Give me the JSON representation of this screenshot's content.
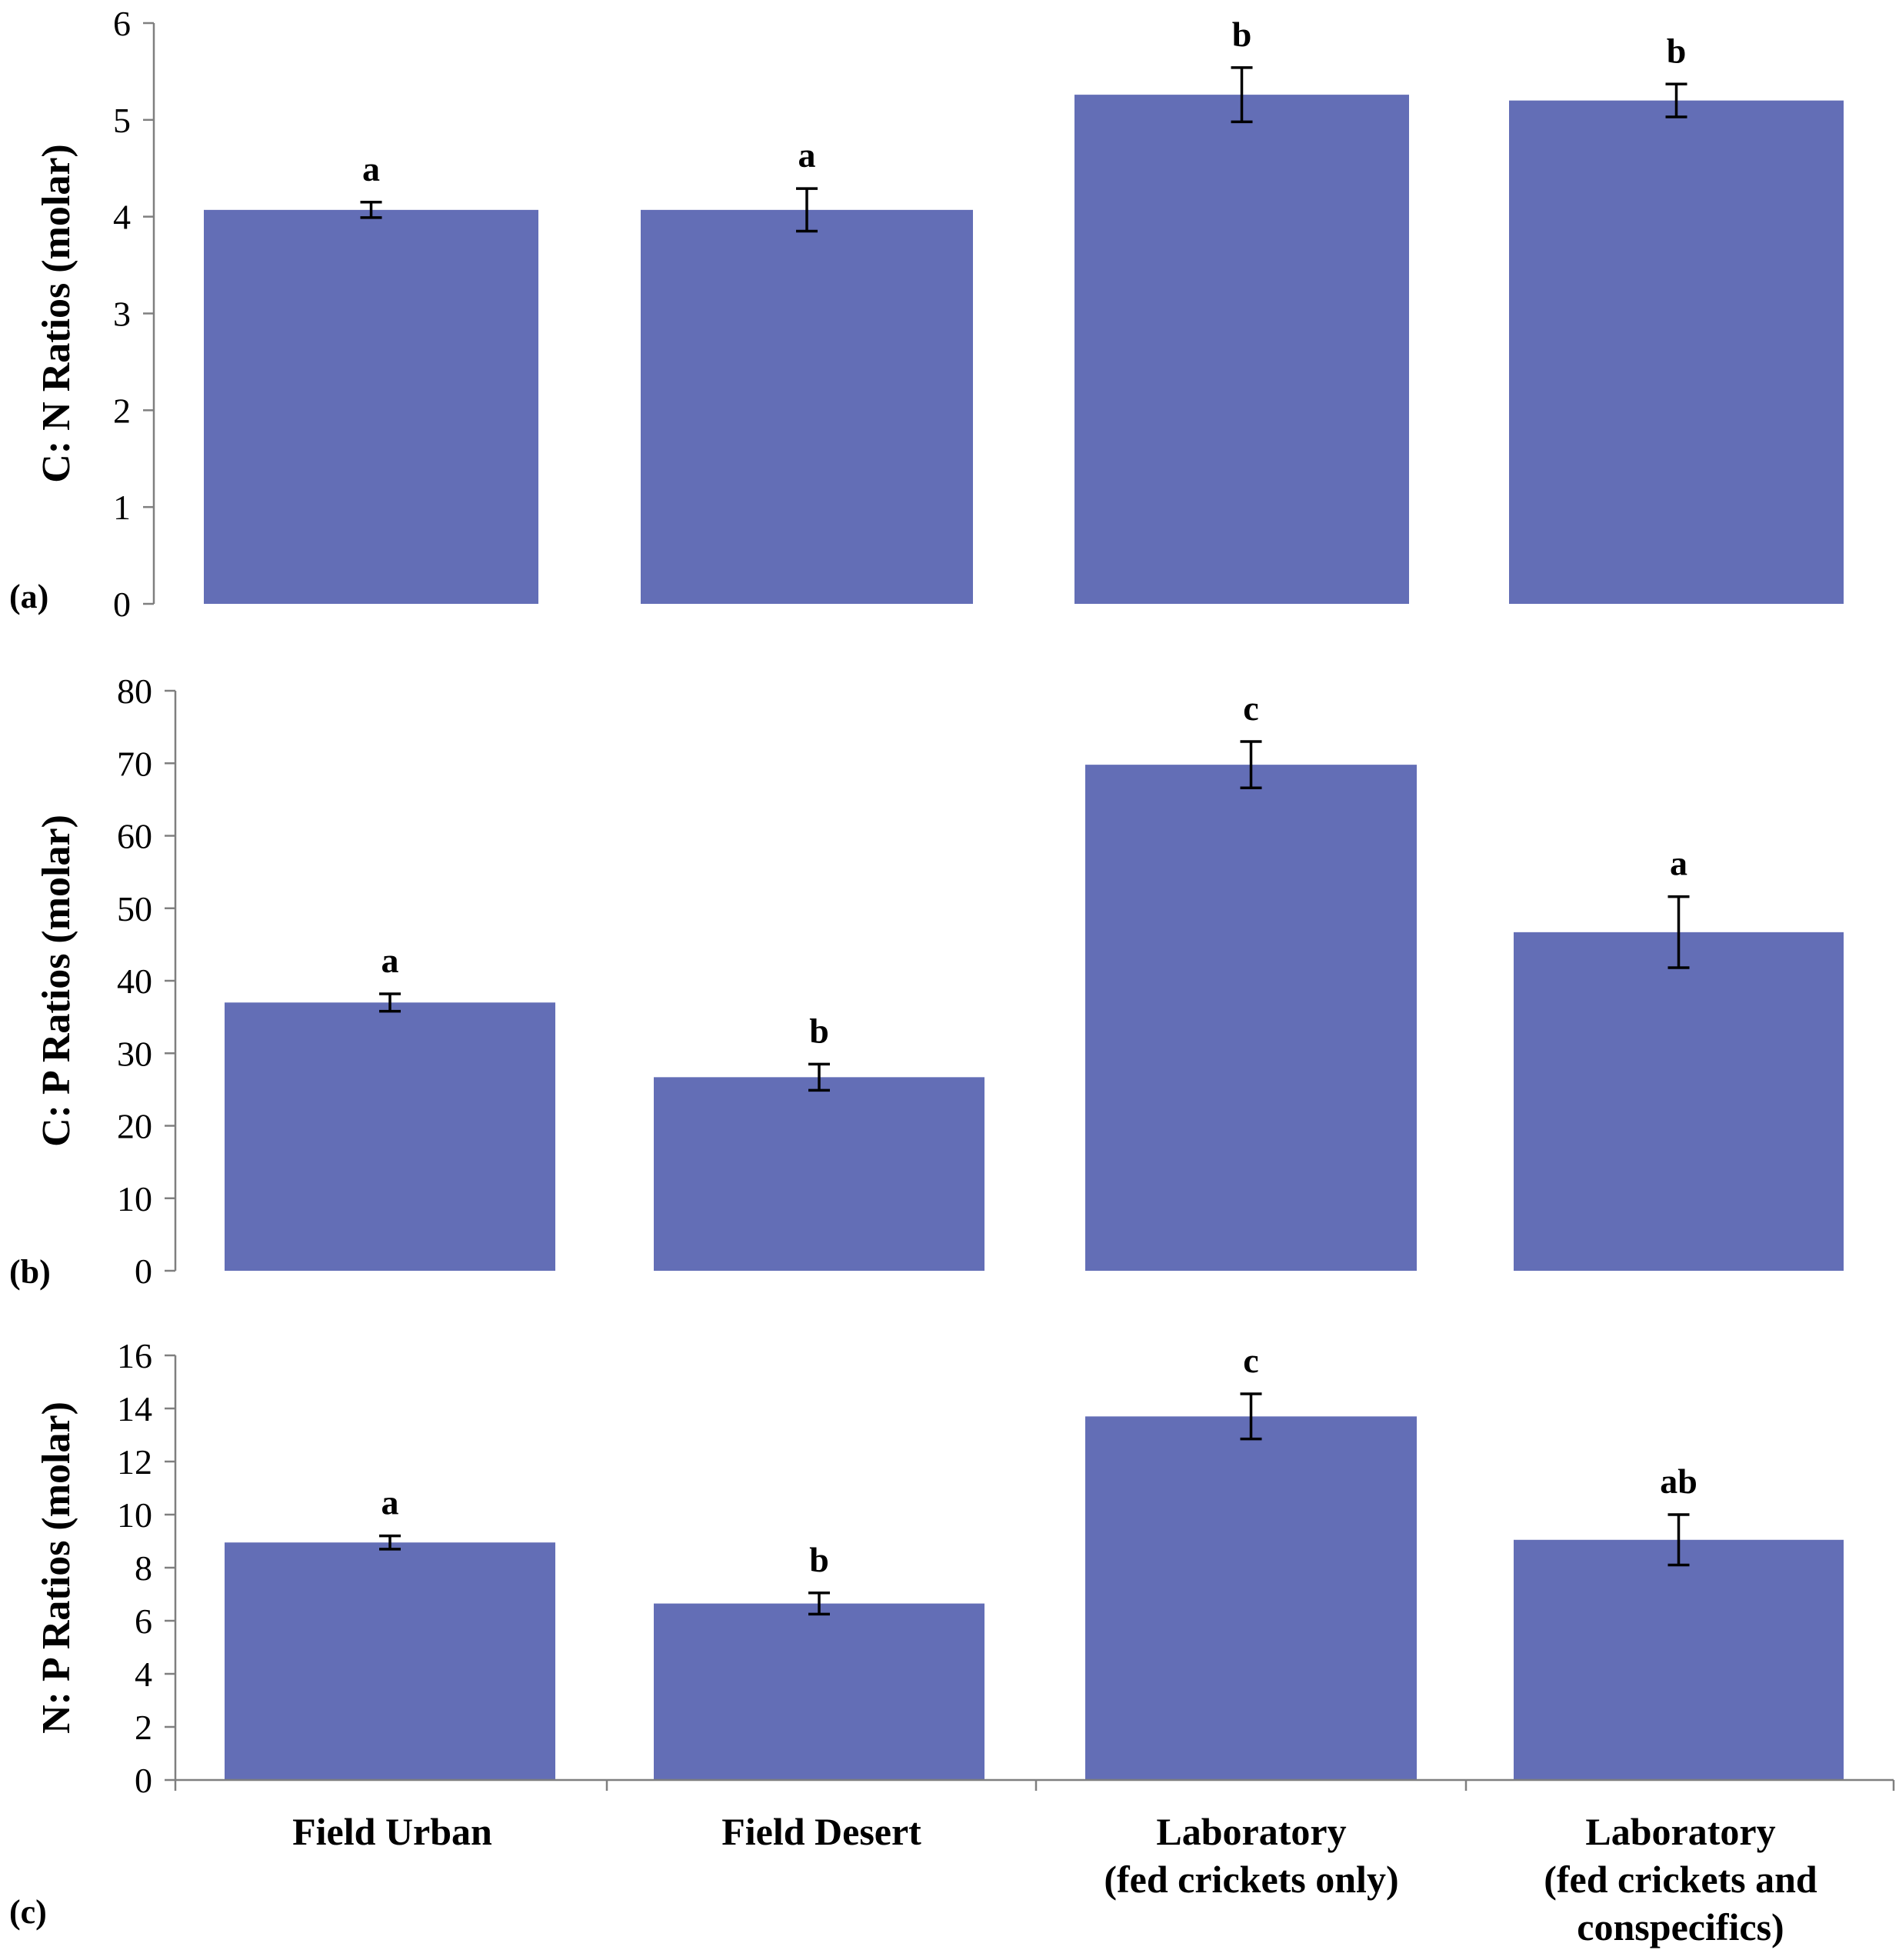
{
  "chart_data": [
    {
      "type": "bar",
      "panel_label": "(a)",
      "ylabel": "C: N Ratios (molar)",
      "ylim": [
        0,
        6
      ],
      "yticks": [
        "0",
        "1",
        "2",
        "3",
        "4",
        "5",
        "6"
      ],
      "categories": [
        "Field Urban",
        "Field Desert",
        "Laboratory (fed crickets only)",
        "Laboratory (fed crickets and conspecifics)"
      ],
      "values": [
        4.07,
        4.07,
        5.26,
        5.2
      ],
      "errors": [
        0.08,
        0.22,
        0.28,
        0.17
      ],
      "significance": [
        "a",
        "a",
        "b",
        "b"
      ],
      "grid": false
    },
    {
      "type": "bar",
      "panel_label": "(b)",
      "ylabel": "C: P Ratios (molar)",
      "ylim": [
        0,
        80
      ],
      "yticks": [
        "0",
        "10",
        "20",
        "30",
        "40",
        "50",
        "60",
        "70",
        "80"
      ],
      "categories": [
        "Field Urban",
        "Field Desert",
        "Laboratory (fed crickets only)",
        "Laboratory (fed crickets and conspecifics)"
      ],
      "values": [
        37,
        26.7,
        69.8,
        46.7
      ],
      "errors": [
        1.2,
        1.8,
        3.2,
        4.9
      ],
      "significance": [
        "a",
        "b",
        "c",
        "a"
      ],
      "grid": false
    },
    {
      "type": "bar",
      "panel_label": "(c)",
      "ylabel": "N: P Ratios (molar)",
      "ylim": [
        0,
        16
      ],
      "yticks": [
        "0",
        "2",
        "4",
        "6",
        "8",
        "10",
        "12",
        "14",
        "16"
      ],
      "categories": [
        "Field Urban",
        "Field Desert",
        "Laboratory (fed crickets only)",
        "Laboratory (fed crickets and conspecifics)"
      ],
      "category_lines": [
        [
          "Field Urban"
        ],
        [
          "Field Desert"
        ],
        [
          "Laboratory",
          "(fed crickets only)"
        ],
        [
          "Laboratory",
          "(fed crickets and",
          "conspecifics)"
        ]
      ],
      "values": [
        8.95,
        6.65,
        13.7,
        9.05
      ],
      "errors": [
        0.25,
        0.4,
        0.85,
        0.95
      ],
      "significance": [
        "a",
        "b",
        "c",
        "ab"
      ],
      "grid": false
    }
  ]
}
